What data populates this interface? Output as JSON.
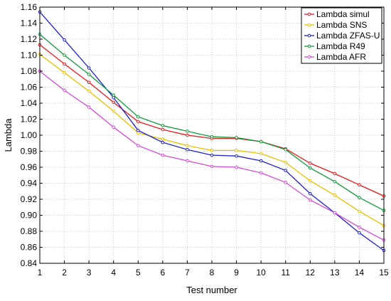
{
  "chart_data": {
    "type": "line",
    "title": "",
    "xlabel": "Test number",
    "ylabel": "Lambda",
    "x": [
      1,
      2,
      3,
      4,
      5,
      6,
      7,
      8,
      9,
      10,
      11,
      12,
      13,
      14,
      15
    ],
    "xlim": [
      1,
      15
    ],
    "ylim": [
      0.84,
      1.16
    ],
    "yticks": [
      "0.84",
      "0.86",
      "0.88",
      "0.90",
      "0.92",
      "0.94",
      "0.96",
      "0.98",
      "1.00",
      "1.02",
      "1.04",
      "1.06",
      "1.08",
      "1.10",
      "1.12",
      "1.14",
      "1.16"
    ],
    "xticks": [
      "1",
      "2",
      "3",
      "4",
      "5",
      "6",
      "7",
      "8",
      "9",
      "10",
      "11",
      "12",
      "13",
      "14",
      "15"
    ],
    "grid": true,
    "legend_position": "top-right",
    "series": [
      {
        "name": "Lambda simul",
        "color": "#e41a1c",
        "values": [
          1.113,
          1.089,
          1.066,
          1.041,
          1.017,
          1.007,
          1.0,
          0.996,
          0.996,
          0.992,
          0.983,
          0.965,
          0.952,
          0.938,
          0.924
        ]
      },
      {
        "name": "Lambda SNS",
        "color": "#e8c000",
        "values": [
          1.101,
          1.078,
          1.055,
          1.03,
          1.003,
          0.995,
          0.987,
          0.981,
          0.981,
          0.977,
          0.966,
          0.943,
          0.925,
          0.905,
          0.887
        ]
      },
      {
        "name": "Lambda ZFAS-U",
        "color": "#1f1fcc",
        "values": [
          1.154,
          1.119,
          1.084,
          1.047,
          1.006,
          0.991,
          0.982,
          0.975,
          0.974,
          0.968,
          0.956,
          0.927,
          0.903,
          0.878,
          0.856
        ]
      },
      {
        "name": "Lambda R49",
        "color": "#0e9a3a",
        "values": [
          1.126,
          1.1,
          1.076,
          1.05,
          1.023,
          1.012,
          1.005,
          0.998,
          0.997,
          0.992,
          0.982,
          0.959,
          0.942,
          0.922,
          0.906
        ]
      },
      {
        "name": "Lambda AFR",
        "color": "#d44ad4",
        "values": [
          1.08,
          1.056,
          1.035,
          1.01,
          0.987,
          0.975,
          0.968,
          0.961,
          0.96,
          0.953,
          0.941,
          0.919,
          0.903,
          0.885,
          0.869
        ]
      }
    ]
  }
}
